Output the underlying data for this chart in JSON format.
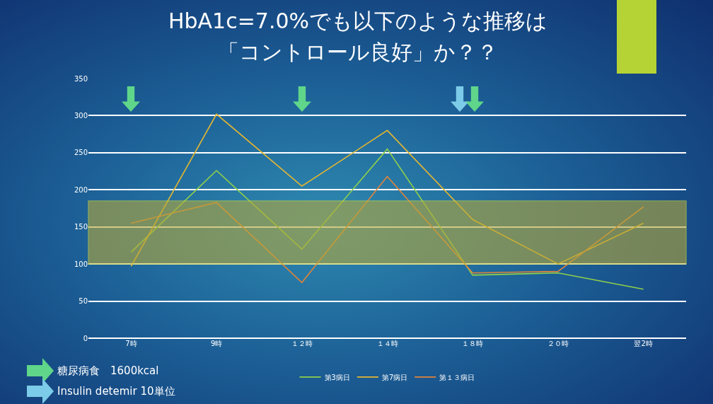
{
  "chart_data": {
    "type": "line",
    "title": "HbA1c=7.0%でも以下のような推移は「コントロール良好」か？？",
    "categories": [
      "7時",
      "9時",
      "１２時",
      "１４時",
      "１８時",
      "２０時",
      "翌2時"
    ],
    "series": [
      {
        "name": "第3病日",
        "color": "#8fd04a",
        "values": [
          116,
          226,
          120,
          255,
          85,
          88,
          66
        ]
      },
      {
        "name": "第7病日",
        "color": "#e6b630",
        "values": [
          97,
          302,
          205,
          280,
          160,
          100,
          155
        ]
      },
      {
        "name": "第１３病日",
        "color": "#e0843a",
        "values": [
          155,
          183,
          75,
          218,
          88,
          90,
          177
        ]
      }
    ],
    "ylim": [
      0,
      350
    ],
    "yticks": [
      0,
      50,
      100,
      150,
      200,
      250,
      300,
      350
    ],
    "bands": [
      {
        "axis": "y",
        "from": 100,
        "to": 185,
        "color": "#b5a83a"
      }
    ],
    "annotations": [
      "糖尿病食　1600kcal",
      "Insulin detemir 10単位"
    ],
    "grid": "y",
    "legend": "bottom",
    "marker": "none",
    "line_style": "solid"
  }
}
